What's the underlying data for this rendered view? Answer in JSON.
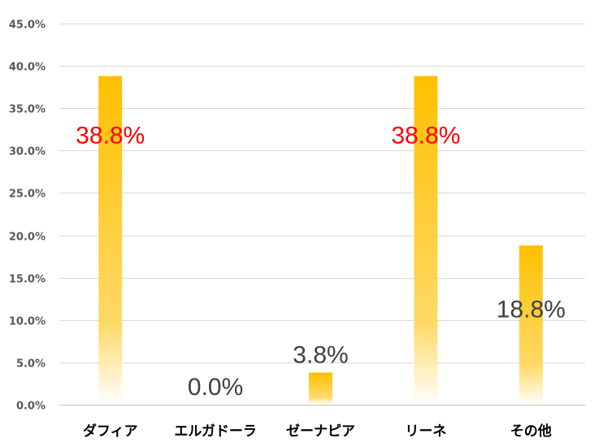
{
  "chart_data": {
    "type": "bar",
    "title": "",
    "xlabel": "",
    "ylabel": "",
    "ylim": [
      0,
      45
    ],
    "y_ticks": [
      0,
      5,
      10,
      15,
      20,
      25,
      30,
      35,
      40,
      45
    ],
    "y_tick_labels": [
      "0.0%",
      "5.0%",
      "10.0%",
      "15.0%",
      "20.0%",
      "25.0%",
      "30.0%",
      "35.0%",
      "40.0%",
      "45.0%"
    ],
    "grid": true,
    "legend": "none",
    "categories": [
      "ダフィア",
      "エルガドーラ",
      "ゼーナピア",
      "リーネ",
      "その他"
    ],
    "values": [
      38.8,
      0.0,
      3.8,
      38.8,
      18.8
    ],
    "data_labels": [
      "38.8%",
      "0.0%",
      "3.8%",
      "38.8%",
      "18.8%"
    ],
    "highlighted": [
      true,
      false,
      false,
      true,
      false
    ],
    "colors": {
      "bar_top": "#FFC000",
      "bar_bottom": "#FFFFFF",
      "label_highlight": "#FF0000",
      "label_normal": "#404040",
      "grid": "#D9D9D9",
      "axis": "#BFBFBF"
    }
  }
}
